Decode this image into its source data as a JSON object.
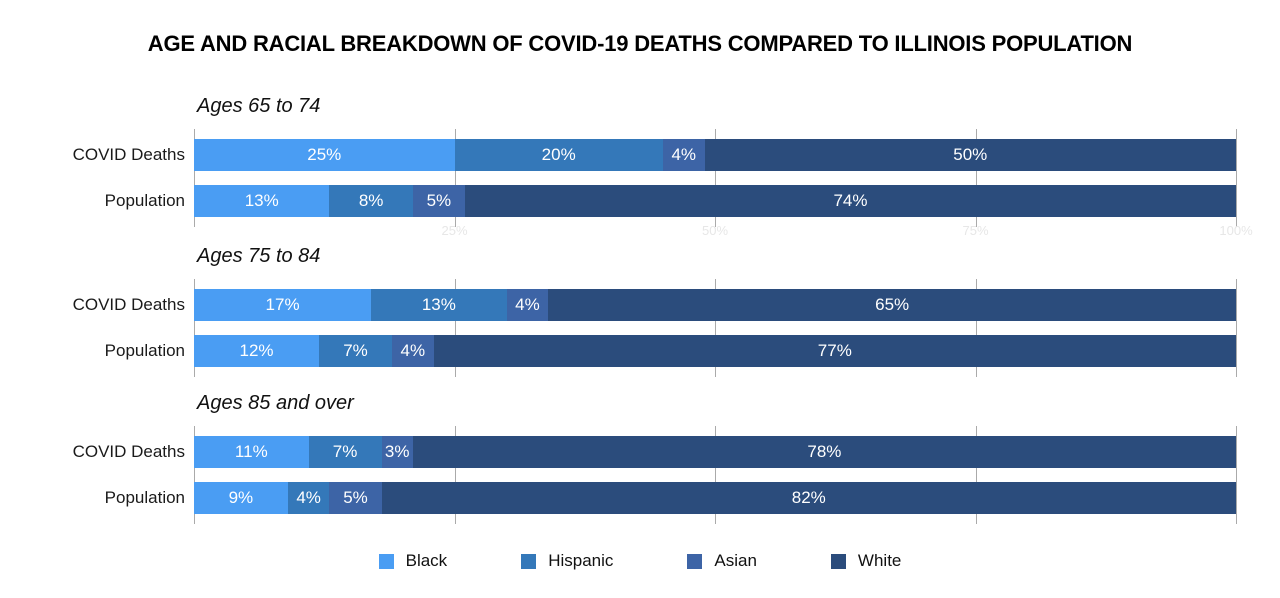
{
  "title": "AGE AND RACIAL BREAKDOWN OF COVID-19 DEATHS COMPARED TO ILLINOIS POPULATION",
  "axis": {
    "tick_labels": [
      "25%",
      "50%",
      "75%",
      "100%"
    ]
  },
  "legend": [
    {
      "key": "black",
      "label": "Black",
      "color": "#4A9DF3"
    },
    {
      "key": "hispanic",
      "label": "Hispanic",
      "color": "#3478B9"
    },
    {
      "key": "asian",
      "label": "Asian",
      "color": "#3D64A6"
    },
    {
      "key": "white",
      "label": "White",
      "color": "#2B4C7C"
    }
  ],
  "chart_data": {
    "type": "bar",
    "orientation": "horizontal",
    "stacked": true,
    "title": "AGE AND RACIAL BREAKDOWN OF COVID-19 DEATHS COMPARED TO ILLINOIS POPULATION",
    "categories": [
      "Black",
      "Hispanic",
      "Asian",
      "White"
    ],
    "colors": [
      "#4A9DF3",
      "#3478B9",
      "#3D64A6",
      "#2B4C7C"
    ],
    "xlim": [
      0,
      100
    ],
    "gridlines_percent": [
      0,
      25,
      50,
      75,
      100
    ],
    "grid": true,
    "legend_position": "bottom",
    "groups": [
      {
        "label": "Ages 65 to 74",
        "rows": [
          {
            "label": "COVID Deaths",
            "values": [
              25,
              20,
              4,
              50
            ]
          },
          {
            "label": "Population",
            "values": [
              13,
              8,
              5,
              74
            ]
          }
        ]
      },
      {
        "label": "Ages 75 to 84",
        "rows": [
          {
            "label": "COVID Deaths",
            "values": [
              17,
              13,
              4,
              65
            ]
          },
          {
            "label": "Population",
            "values": [
              12,
              7,
              4,
              77
            ]
          }
        ]
      },
      {
        "label": "Ages 85 and over",
        "rows": [
          {
            "label": "COVID Deaths",
            "values": [
              11,
              7,
              3,
              78
            ]
          },
          {
            "label": "Population",
            "values": [
              9,
              4,
              5,
              82
            ]
          }
        ]
      }
    ]
  }
}
